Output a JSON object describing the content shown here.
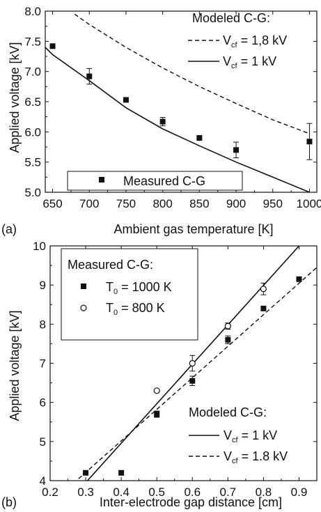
{
  "chart_data": [
    {
      "panel": "(a)",
      "type": "scatter",
      "xlabel": "Ambient gas temperature [K]",
      "ylabel": "Applied voltage  [kV]",
      "xlim": [
        640,
        1010
      ],
      "ylim": [
        5.0,
        8.0
      ],
      "xticks": [
        650,
        700,
        750,
        800,
        850,
        900,
        950,
        1000
      ],
      "yticks": [
        5.0,
        5.5,
        6.0,
        6.5,
        7.0,
        7.5,
        8.0
      ],
      "legend_title": "Modeled C-G:",
      "legend_items": [
        {
          "label": "V",
          "sub": "cf",
          "rest": " = 1,8 kV",
          "style": "dashed"
        },
        {
          "label": "V",
          "sub": "cf",
          "rest": " = 1 kV",
          "style": "solid"
        }
      ],
      "measured_label": "Measured C-G",
      "series": [
        {
          "name": "Measured C-G",
          "marker": "square",
          "x": [
            650,
            700,
            750,
            800,
            850,
            900,
            1000
          ],
          "y": [
            7.42,
            6.92,
            6.53,
            6.17,
            5.9,
            5.7,
            5.84
          ],
          "err": [
            0,
            0.13,
            0,
            0.07,
            0,
            0.13,
            0.3
          ]
        },
        {
          "name": "V_cf = 1,8 kV",
          "style": "dashed",
          "x": [
            680,
            700,
            750,
            800,
            850,
            900,
            950,
            1000
          ],
          "y": [
            7.95,
            7.78,
            7.4,
            7.06,
            6.75,
            6.47,
            6.2,
            5.97
          ]
        },
        {
          "name": "V_cf = 1 kV",
          "style": "solid",
          "x": [
            640,
            650,
            700,
            750,
            800,
            850,
            900,
            950,
            1000
          ],
          "y": [
            7.4,
            7.28,
            6.85,
            6.4,
            6.05,
            5.77,
            5.5,
            5.25,
            5.0
          ]
        }
      ]
    },
    {
      "panel": "(b)",
      "type": "scatter",
      "xlabel": "Inter-electrode gap distance  [cm]",
      "ylabel": "Applied voltage [kV]",
      "xlim": [
        0.2,
        0.95
      ],
      "ylim": [
        4,
        10
      ],
      "xticks": [
        0.2,
        0.3,
        0.4,
        0.5,
        0.6,
        0.7,
        0.8,
        0.9
      ],
      "yticks": [
        4,
        5,
        6,
        7,
        8,
        9,
        10
      ],
      "legend_title": "Measured C-G:",
      "legend_items": [
        {
          "label": "T",
          "sub": "0",
          "rest": " = 1000 K",
          "marker": "square"
        },
        {
          "label": "T",
          "sub": "0",
          "rest": " = 800 K",
          "marker": "circle"
        }
      ],
      "model_title": "Modeled C-G:",
      "model_items": [
        {
          "label": "V",
          "sub": "cf",
          "rest": " = 1 kV",
          "style": "solid"
        },
        {
          "label": "V",
          "sub": "cf",
          "rest": " = 1.8 kV",
          "style": "dashed"
        }
      ],
      "series": [
        {
          "name": "T0 = 1000 K",
          "marker": "square",
          "x": [
            0.3,
            0.4,
            0.5,
            0.6,
            0.7,
            0.8,
            0.9
          ],
          "y": [
            4.2,
            4.2,
            5.7,
            6.55,
            7.6,
            8.4,
            9.15
          ],
          "err": [
            0,
            0,
            0.08,
            0.12,
            0.1,
            0,
            0
          ]
        },
        {
          "name": "T0 = 800 K",
          "marker": "circle",
          "x": [
            0.5,
            0.6,
            0.7,
            0.8
          ],
          "y": [
            6.3,
            7.0,
            7.95,
            8.9
          ],
          "err": [
            0,
            0.2,
            0.08,
            0.15
          ]
        },
        {
          "name": "V_cf = 1 kV",
          "style": "solid",
          "x": [
            0.3,
            0.9
          ],
          "y": [
            3.95,
            10.0
          ]
        },
        {
          "name": "V_cf = 1.8 kV",
          "style": "dashed",
          "x": [
            0.28,
            0.95
          ],
          "y": [
            4.05,
            9.45
          ]
        }
      ]
    }
  ]
}
